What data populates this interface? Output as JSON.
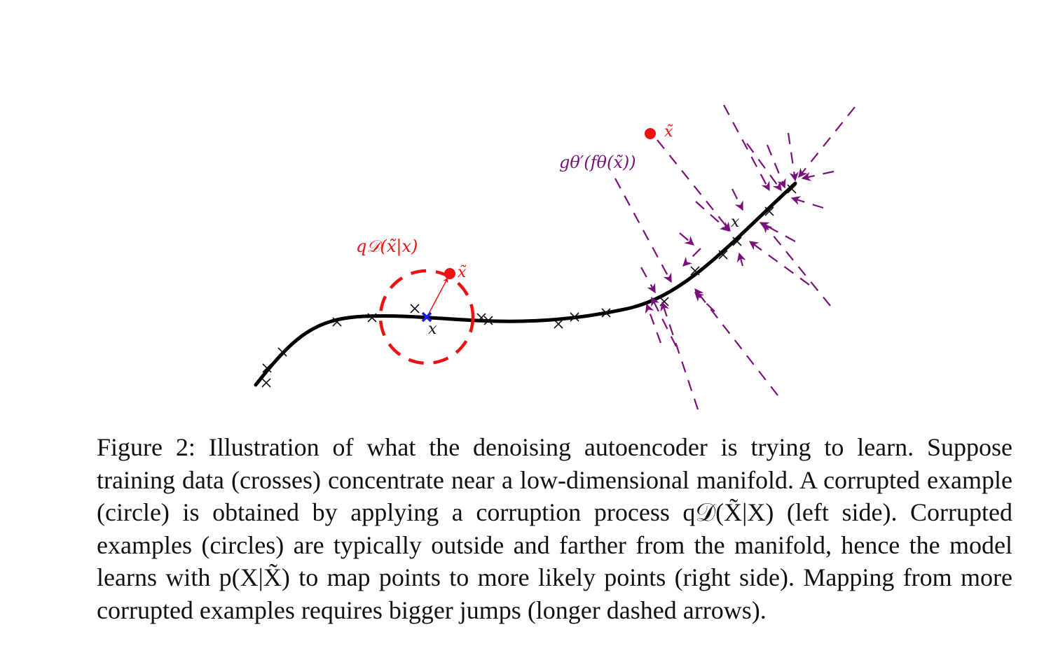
{
  "figure": {
    "labels": {
      "corruption_process": "q𝒟(x̃|x)",
      "corrupted_point_left": "x̃",
      "clean_point": "x",
      "reconstruction": "gθ′(fθ(x̃))",
      "corrupted_point_right": "x̃",
      "clean_point_right": "x"
    },
    "colors": {
      "manifold": "#000000",
      "corruption": "#ee1111",
      "reconstruction_arrows": "#7a107a",
      "clean_example": "#1a1aee",
      "training_crosses": "#000000"
    }
  },
  "caption": {
    "label": "Figure 2:",
    "text": "Illustration of what the denoising autoencoder is trying to learn. Suppose training data (crosses) concentrate near a low-dimensional manifold. A corrupted example (circle) is obtained by applying a corruption process q𝒟(X̃|X) (left side). Corrupted examples (circles) are typically outside and farther from the manifold, hence the model learns with p(X|X̃) to map points to more likely points (right side). Mapping from more corrupted examples requires bigger jumps (longer dashed arrows)."
  }
}
